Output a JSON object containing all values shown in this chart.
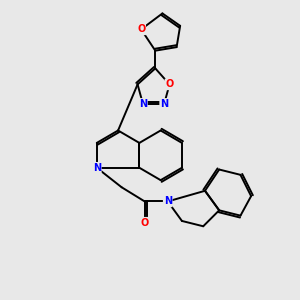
{
  "background_color": "#e8e8e8",
  "bond_color": "#000000",
  "N_color": "#0000ff",
  "O_color": "#ff0000",
  "lw": 1.4,
  "dbo": 0.055,
  "figsize": [
    3.0,
    3.0
  ],
  "dpi": 100,
  "xlim": [
    1.5,
    8.5
  ],
  "ylim": [
    1.2,
    9.5
  ]
}
